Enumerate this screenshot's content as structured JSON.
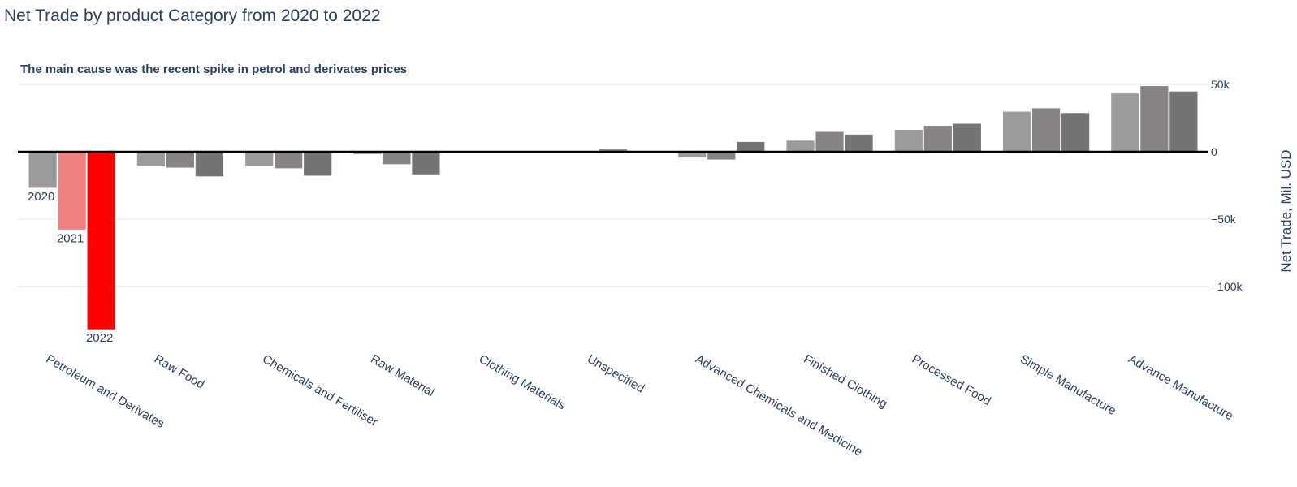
{
  "chart_data": {
    "type": "bar",
    "title": "Net Trade by product Category from 2020 to 2022",
    "annotation": "The main cause was the recent spike in petrol and derivates prices",
    "ylabel": "Net Trade, Mil. USD",
    "ylim": [
      -140000,
      52000
    ],
    "yticks": [
      50000,
      0,
      -50000,
      -100000
    ],
    "ytick_labels": [
      "50k",
      "0",
      "−50k",
      "−100k"
    ],
    "categories": [
      "Petroleum and Derivates",
      "Raw Food",
      "Chemicals and Fertiliser",
      "Raw Material",
      "Clothing Materials",
      "Unspecified",
      "Advanced Chemicals and Medicine",
      "Finished Clothing",
      "Processed Food",
      "Simple Manufacture",
      "Advance Manufacture"
    ],
    "series": [
      {
        "label": "2020",
        "values": [
          -27000,
          -11000,
          -10500,
          -2000,
          -300,
          200,
          -4500,
          8500,
          16500,
          30000,
          43500
        ]
      },
      {
        "label": "2021",
        "values": [
          -58000,
          -12000,
          -12500,
          -9500,
          -200,
          2000,
          -6000,
          15000,
          19500,
          32500,
          49000
        ]
      },
      {
        "label": "2022",
        "values": [
          -132000,
          -18500,
          -18000,
          -17000,
          100,
          200,
          7500,
          13000,
          21000,
          29000,
          45000
        ]
      }
    ],
    "colors": {
      "default": [
        "#9b9b9b",
        "#868286",
        "#747474"
      ],
      "highlight": [
        "#9b9b9b",
        "#f08080",
        "#ff0000"
      ]
    },
    "highlight_category": 0
  }
}
